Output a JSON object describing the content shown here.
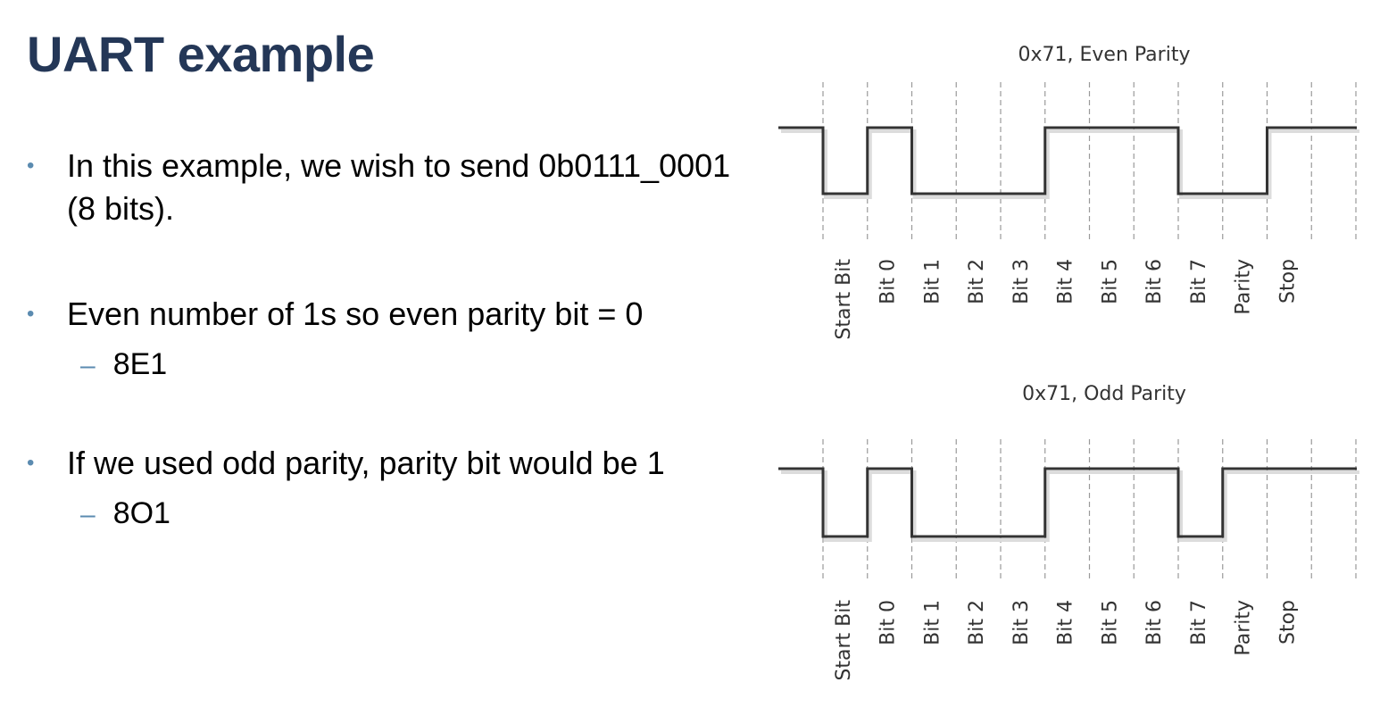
{
  "slide": {
    "title": "UART example",
    "bullets": [
      {
        "text": "In this example, we wish to send 0b0111_0001 (8 bits).",
        "sub": []
      },
      {
        "text": "Even number of 1s so even parity bit = 0",
        "sub": [
          "8E1"
        ]
      },
      {
        "text": "If we used odd parity, parity bit would be 1",
        "sub": [
          "8O1"
        ]
      }
    ]
  },
  "diagrams": [
    {
      "title": "0x71, Even Parity",
      "bit_labels": [
        "Start Bit",
        "Bit 0",
        "Bit 1",
        "Bit 2",
        "Bit 3",
        "Bit 4",
        "Bit 5",
        "Bit 6",
        "Bit 7",
        "Parity",
        "Stop"
      ],
      "levels": [
        0,
        1,
        0,
        0,
        0,
        1,
        1,
        1,
        0,
        0,
        1
      ]
    },
    {
      "title": "0x71, Odd Parity",
      "bit_labels": [
        "Start Bit",
        "Bit 0",
        "Bit 1",
        "Bit 2",
        "Bit 3",
        "Bit 4",
        "Bit 5",
        "Bit 6",
        "Bit 7",
        "Parity",
        "Stop"
      ],
      "levels": [
        0,
        1,
        0,
        0,
        0,
        1,
        1,
        1,
        0,
        1,
        1
      ]
    }
  ]
}
